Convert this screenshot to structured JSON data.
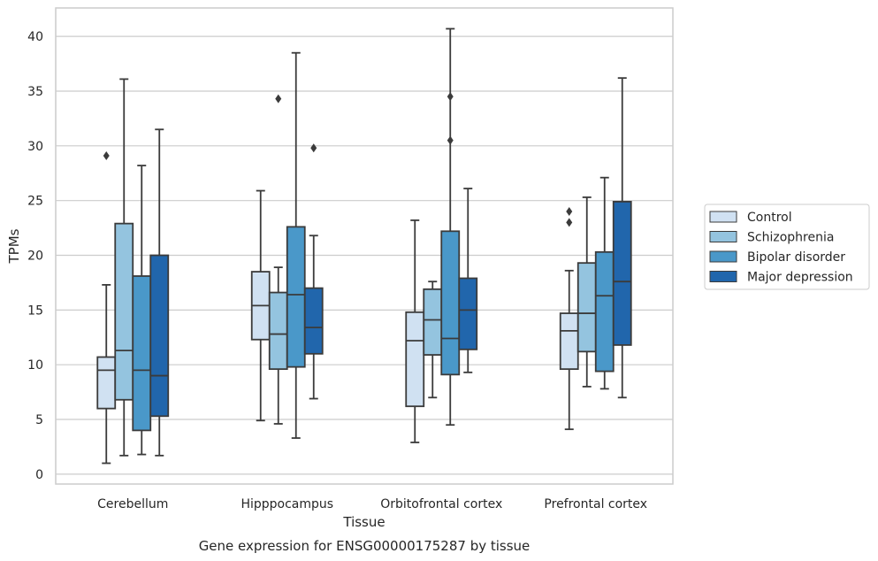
{
  "chart_data": {
    "type": "box",
    "caption": "Gene expression for ENSG00000175287 by tissue",
    "xlabel": "Tissue",
    "ylabel": "TPMs",
    "ylim": [
      -0.9,
      42.6
    ],
    "yticks": [
      0,
      5,
      10,
      15,
      20,
      25,
      30,
      35,
      40
    ],
    "grid": true,
    "legend_position": "right",
    "categories": [
      "Cerebellum",
      "Hipppocampus",
      "Orbitofrontal cortex",
      "Prefrontal cortex"
    ],
    "series": [
      {
        "name": "Control",
        "color": "#d0e1f2",
        "boxes": [
          {
            "whisker_low": 1.0,
            "q1": 6.0,
            "median": 9.5,
            "q3": 10.7,
            "whisker_high": 17.3,
            "outliers": [
              29.1
            ]
          },
          {
            "whisker_low": 4.9,
            "q1": 12.3,
            "median": 15.4,
            "q3": 18.5,
            "whisker_high": 25.9,
            "outliers": []
          },
          {
            "whisker_low": 2.9,
            "q1": 6.2,
            "median": 12.2,
            "q3": 14.8,
            "whisker_high": 23.2,
            "outliers": []
          },
          {
            "whisker_low": 4.1,
            "q1": 9.6,
            "median": 13.1,
            "q3": 14.7,
            "whisker_high": 18.6,
            "outliers": [
              23.0,
              24.0
            ]
          }
        ]
      },
      {
        "name": "Schizophrenia",
        "color": "#94c4df",
        "boxes": [
          {
            "whisker_low": 1.7,
            "q1": 6.8,
            "median": 11.3,
            "q3": 22.9,
            "whisker_high": 36.1,
            "outliers": []
          },
          {
            "whisker_low": 4.6,
            "q1": 9.6,
            "median": 12.8,
            "q3": 16.6,
            "whisker_high": 18.9,
            "outliers": [
              34.3
            ]
          },
          {
            "whisker_low": 7.0,
            "q1": 10.9,
            "median": 14.1,
            "q3": 16.9,
            "whisker_high": 17.6,
            "outliers": []
          },
          {
            "whisker_low": 8.0,
            "q1": 11.2,
            "median": 14.7,
            "q3": 19.3,
            "whisker_high": 25.3,
            "outliers": []
          }
        ]
      },
      {
        "name": "Bipolar disorder",
        "color": "#4a98c9",
        "boxes": [
          {
            "whisker_low": 1.8,
            "q1": 4.0,
            "median": 9.5,
            "q3": 18.1,
            "whisker_high": 28.2,
            "outliers": []
          },
          {
            "whisker_low": 3.3,
            "q1": 9.8,
            "median": 16.4,
            "q3": 22.6,
            "whisker_high": 38.5,
            "outliers": []
          },
          {
            "whisker_low": 4.5,
            "q1": 9.1,
            "median": 12.4,
            "q3": 22.2,
            "whisker_high": 40.7,
            "outliers": [
              30.5,
              34.5
            ]
          },
          {
            "whisker_low": 7.8,
            "q1": 9.4,
            "median": 16.3,
            "q3": 20.3,
            "whisker_high": 27.1,
            "outliers": []
          }
        ]
      },
      {
        "name": "Major depression",
        "color": "#2166ac",
        "boxes": [
          {
            "whisker_low": 1.7,
            "q1": 5.3,
            "median": 9.0,
            "q3": 20.0,
            "whisker_high": 31.5,
            "outliers": []
          },
          {
            "whisker_low": 6.9,
            "q1": 11.0,
            "median": 13.4,
            "q3": 17.0,
            "whisker_high": 21.8,
            "outliers": [
              29.8
            ]
          },
          {
            "whisker_low": 9.3,
            "q1": 11.4,
            "median": 15.0,
            "q3": 17.9,
            "whisker_high": 26.1,
            "outliers": []
          },
          {
            "whisker_low": 7.0,
            "q1": 11.8,
            "median": 17.6,
            "q3": 24.9,
            "whisker_high": 36.2,
            "outliers": []
          }
        ]
      }
    ]
  }
}
